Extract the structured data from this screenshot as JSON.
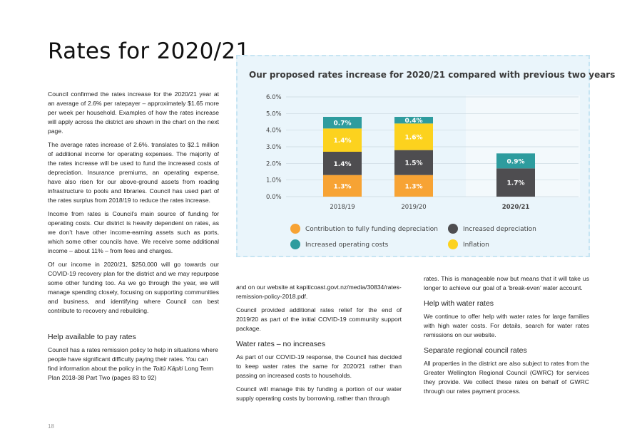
{
  "title": "Rates for 2020/21",
  "page_number": "18",
  "col1": {
    "p1": "Council confirmed the rates increase for the 2020/21 year at an average of 2.6% per ratepayer – approximately $1.65 more per week per household. Examples of how the rates increase will apply across the district are shown in the chart on the next page.",
    "p2": "The average rates increase of 2.6%. translates to $2.1 million of additional income for operating expenses. The majority of the rates increase will be used to fund the increased costs of depreciation. Insurance premiums, an operating expense, have also risen for our above-ground assets from roading infrastructure to pools and libraries. Council has used part of the rates surplus from 2018/19 to reduce the rates increase.",
    "p3": "Income from rates is Council’s main source of funding for operating costs. Our district is heavily dependent on rates, as we don’t have other income-earning assets such as ports, which some other councils have. We receive some additional income – about 11% – from fees and charges.",
    "p4": "Of our income in 2020/21, $250,000 will go towards our COVID-19 recovery plan for the district and we may repurpose some other funding too. As we go through the year, we will manage spending closely, focusing on supporting communities and business, and identifying where Council can best contribute to recovery and rebuilding.",
    "h_help": "Help available to pay rates",
    "p5_a": "Council has a rates remission policy to help in situations where people have significant difficulty paying their rates. You can find information about the policy in the ",
    "p5_em": "Toitū Kāpiti",
    "p5_b": " Long Term Plan 2018-38 Part Two (pages 83 to 92)"
  },
  "col2": {
    "p1": "and on our website at kapiticoast.govt.nz/media/30834/rates-remission-policy-2018.pdf.",
    "p2": "Council provided additional rates relief for the end of 2019/20 as part of the initial COVID-19 community support package.",
    "h_water": "Water rates – no increases",
    "p3": "As part of our COVID-19 response, the Council has decided to keep water rates the same for 2020/21 rather than passing on increased costs to households.",
    "p4": "Council will manage this by funding a portion of our water supply operating costs by borrowing, rather than through"
  },
  "col3": {
    "p1": "rates. This is manageable now but means that it will take us longer to achieve our goal of a ‘break-even’ water account.",
    "h_help_water": "Help with water rates",
    "p2": "We continue to offer help with water rates for large families with high water costs. For details, search for water rates remissions on our website.",
    "h_regional": "Separate regional council rates",
    "p3": "All properties in the district are also subject to rates from the Greater Wellington Regional Council (GWRC) for services they provide. We collect these rates on behalf of GWRC through our rates payment process."
  },
  "chart_data": {
    "type": "bar",
    "stacked": true,
    "title": "Our proposed rates increase for 2020/21 compared with previous two years",
    "categories": [
      "2018/19",
      "2019/20",
      "2020/21"
    ],
    "highlight_category": "2020/21",
    "ylim": [
      0,
      6
    ],
    "y_ticks": [
      "0.0%",
      "1.0%",
      "2.0%",
      "3.0%",
      "4.0%",
      "5.0%",
      "6.0%"
    ],
    "grid": true,
    "legend_position": "bottom",
    "series": [
      {
        "name": "Contribution to fully funding depreciation",
        "color": "#f7a334",
        "label_color": "#ffffff",
        "values": [
          1.3,
          1.3,
          0
        ],
        "labels": [
          "1.3%",
          "1.3%",
          ""
        ]
      },
      {
        "name": "Increased depreciation",
        "color": "#4e4d50",
        "label_color": "#ffffff",
        "values": [
          1.4,
          1.5,
          1.7
        ],
        "labels": [
          "1.4%",
          "1.5%",
          "1.7%"
        ]
      },
      {
        "name": "Inflation",
        "color": "#fcd21e",
        "label_color": "#ffffff",
        "values": [
          1.4,
          1.6,
          0
        ],
        "labels": [
          "1.4%",
          "1.6%",
          ""
        ]
      },
      {
        "name": "Increased operating costs",
        "color": "#2e9c9e",
        "label_color": "#ffffff",
        "values": [
          0.7,
          0.4,
          0.9
        ],
        "labels": [
          "0.7%",
          "0.4%",
          "0.9%"
        ]
      }
    ],
    "legend_order": [
      "Contribution to fully funding depreciation",
      "Increased depreciation",
      "Increased operating costs",
      "Inflation"
    ]
  }
}
